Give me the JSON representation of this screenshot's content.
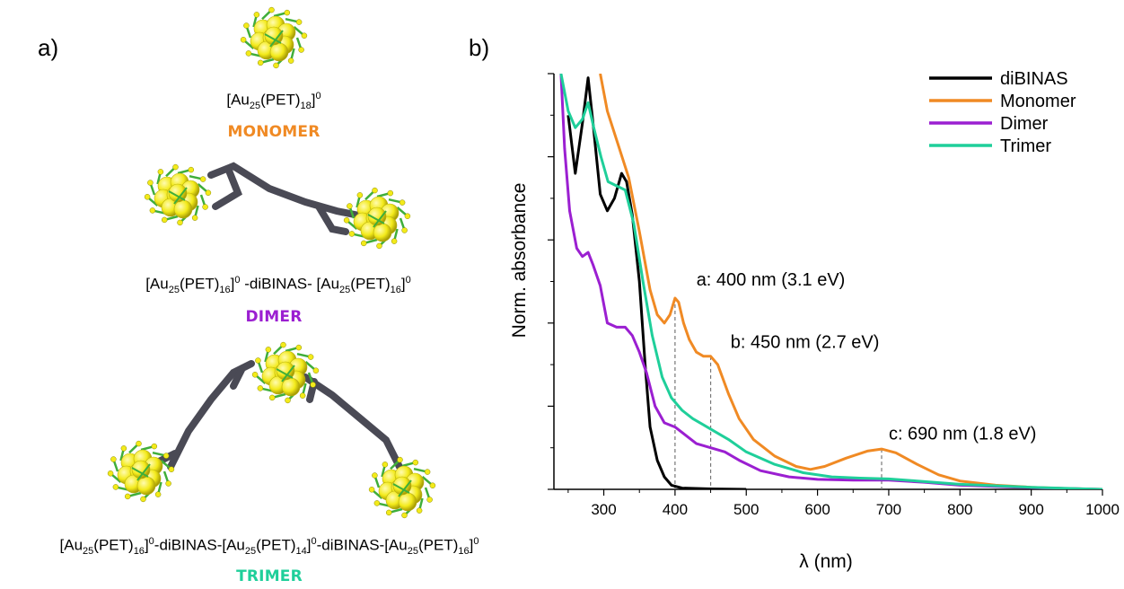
{
  "panels": {
    "a": "a)",
    "b": "b)"
  },
  "left_panel": {
    "monomer": {
      "formula_parts": [
        [
          "Au",
          "25",
          ""
        ],
        [
          "(PET)",
          "18",
          "0"
        ]
      ],
      "caption": "MONOMER",
      "color": "#f08a24"
    },
    "dimer": {
      "formula_text": "[Au25(PET)16]0 -diBINAS- [Au25(PET)16]0",
      "caption": "DIMER",
      "color": "#9b1fd1"
    },
    "trimer": {
      "formula_text": "[Au25(PET)16]0-diBINAS-[Au25(PET)14]0-diBINAS-[Au25(PET)16]0",
      "caption": "TRIMER",
      "color": "#1fcf9a"
    },
    "cluster_colors": {
      "gold": "#f3ea1a",
      "ligand": "#3fae3a",
      "linker": "#4a4a55"
    }
  },
  "chart_data": {
    "type": "line",
    "xlabel": "λ (nm)",
    "ylabel": "Norm. absorbance",
    "xlim": [
      230,
      1000
    ],
    "ylim": [
      0,
      1
    ],
    "x_ticks": [
      300,
      400,
      500,
      600,
      700,
      800,
      900,
      1000
    ],
    "legend_position": "top-right",
    "series": [
      {
        "name": "diBINAS",
        "color": "#000000",
        "points": [
          [
            250,
            0.9
          ],
          [
            260,
            0.76
          ],
          [
            270,
            0.88
          ],
          [
            278,
            0.99
          ],
          [
            285,
            0.88
          ],
          [
            295,
            0.71
          ],
          [
            305,
            0.67
          ],
          [
            315,
            0.7
          ],
          [
            325,
            0.76
          ],
          [
            332,
            0.74
          ],
          [
            340,
            0.66
          ],
          [
            350,
            0.5
          ],
          [
            358,
            0.3
          ],
          [
            365,
            0.15
          ],
          [
            375,
            0.07
          ],
          [
            385,
            0.03
          ],
          [
            395,
            0.01
          ],
          [
            410,
            0.003
          ],
          [
            450,
            0.001
          ],
          [
            500,
            0.0
          ]
        ]
      },
      {
        "name": "Monomer",
        "color": "#f08a24",
        "points": [
          [
            295,
            1.0
          ],
          [
            305,
            0.91
          ],
          [
            320,
            0.83
          ],
          [
            335,
            0.75
          ],
          [
            350,
            0.62
          ],
          [
            365,
            0.48
          ],
          [
            375,
            0.42
          ],
          [
            385,
            0.4
          ],
          [
            393,
            0.42
          ],
          [
            400,
            0.46
          ],
          [
            405,
            0.45
          ],
          [
            412,
            0.4
          ],
          [
            420,
            0.36
          ],
          [
            430,
            0.33
          ],
          [
            440,
            0.32
          ],
          [
            450,
            0.32
          ],
          [
            460,
            0.3
          ],
          [
            475,
            0.23
          ],
          [
            490,
            0.17
          ],
          [
            510,
            0.12
          ],
          [
            540,
            0.08
          ],
          [
            570,
            0.055
          ],
          [
            590,
            0.048
          ],
          [
            610,
            0.055
          ],
          [
            640,
            0.075
          ],
          [
            670,
            0.092
          ],
          [
            690,
            0.097
          ],
          [
            710,
            0.088
          ],
          [
            740,
            0.06
          ],
          [
            770,
            0.035
          ],
          [
            800,
            0.02
          ],
          [
            850,
            0.01
          ],
          [
            900,
            0.005
          ],
          [
            950,
            0.002
          ],
          [
            1000,
            0.0
          ]
        ]
      },
      {
        "name": "Dimer",
        "color": "#9b1fd1",
        "points": [
          [
            240,
            1.0
          ],
          [
            245,
            0.82
          ],
          [
            252,
            0.67
          ],
          [
            262,
            0.58
          ],
          [
            270,
            0.56
          ],
          [
            278,
            0.57
          ],
          [
            285,
            0.54
          ],
          [
            295,
            0.49
          ],
          [
            305,
            0.4
          ],
          [
            318,
            0.39
          ],
          [
            330,
            0.39
          ],
          [
            340,
            0.37
          ],
          [
            350,
            0.33
          ],
          [
            360,
            0.28
          ],
          [
            372,
            0.2
          ],
          [
            385,
            0.16
          ],
          [
            400,
            0.15
          ],
          [
            415,
            0.13
          ],
          [
            430,
            0.11
          ],
          [
            450,
            0.1
          ],
          [
            470,
            0.09
          ],
          [
            490,
            0.07
          ],
          [
            520,
            0.045
          ],
          [
            560,
            0.03
          ],
          [
            600,
            0.024
          ],
          [
            650,
            0.022
          ],
          [
            700,
            0.022
          ],
          [
            750,
            0.017
          ],
          [
            800,
            0.01
          ],
          [
            900,
            0.004
          ],
          [
            1000,
            0.0
          ]
        ]
      },
      {
        "name": "Trimer",
        "color": "#1fcf9a",
        "points": [
          [
            240,
            1.0
          ],
          [
            250,
            0.91
          ],
          [
            260,
            0.87
          ],
          [
            270,
            0.89
          ],
          [
            278,
            0.93
          ],
          [
            286,
            0.87
          ],
          [
            296,
            0.8
          ],
          [
            306,
            0.74
          ],
          [
            318,
            0.73
          ],
          [
            330,
            0.72
          ],
          [
            342,
            0.64
          ],
          [
            355,
            0.5
          ],
          [
            368,
            0.37
          ],
          [
            382,
            0.27
          ],
          [
            395,
            0.22
          ],
          [
            410,
            0.19
          ],
          [
            425,
            0.17
          ],
          [
            440,
            0.155
          ],
          [
            455,
            0.14
          ],
          [
            475,
            0.12
          ],
          [
            500,
            0.09
          ],
          [
            540,
            0.06
          ],
          [
            580,
            0.04
          ],
          [
            620,
            0.03
          ],
          [
            660,
            0.027
          ],
          [
            700,
            0.025
          ],
          [
            740,
            0.02
          ],
          [
            800,
            0.012
          ],
          [
            900,
            0.005
          ],
          [
            1000,
            0.0
          ]
        ]
      }
    ],
    "annotations": [
      {
        "text": "a: 400 nm (3.1 eV)",
        "x": 400,
        "y_top": 0.46,
        "label_x": 430,
        "label_y": 0.49
      },
      {
        "text": "b: 450 nm (2.7 eV)",
        "x": 450,
        "y_top": 0.32,
        "label_x": 478,
        "label_y": 0.34
      },
      {
        "text": "c: 690 nm (1.8 eV)",
        "x": 690,
        "y_top": 0.097,
        "label_x": 700,
        "label_y": 0.12
      }
    ]
  }
}
